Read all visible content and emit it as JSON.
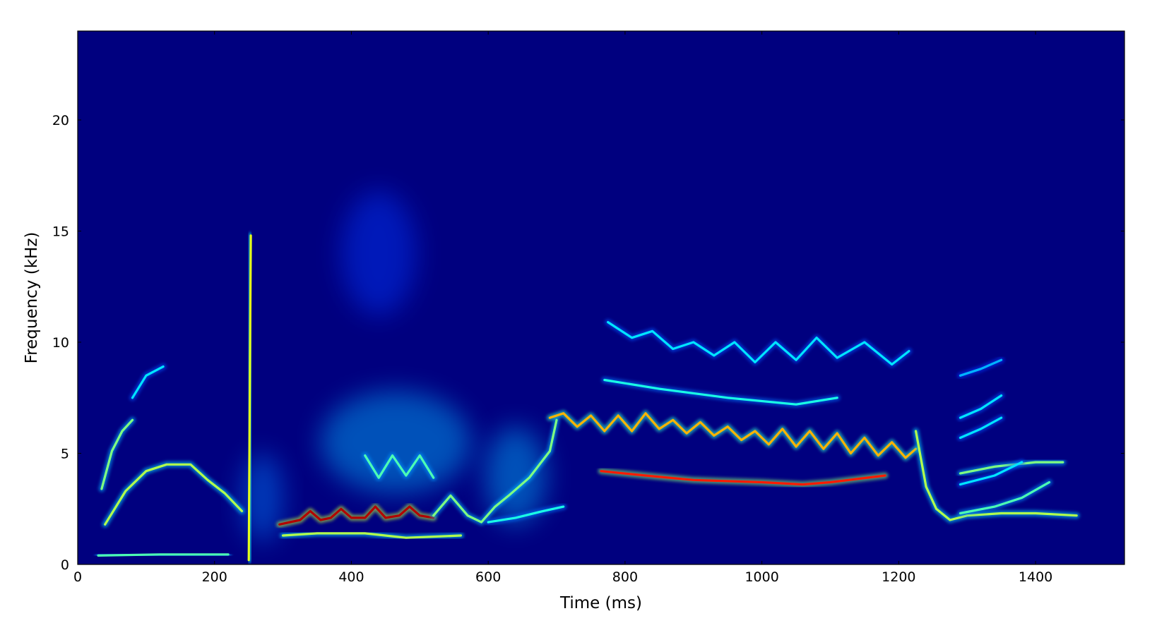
{
  "chart_data": {
    "type": "heatmap",
    "title": "",
    "xlabel": "Time (ms)",
    "ylabel": "Frequency (kHz)",
    "xlim": [
      0,
      1530
    ],
    "ylim": [
      0,
      24
    ],
    "x_ticks": [
      0,
      200,
      400,
      600,
      800,
      1000,
      1200,
      1400
    ],
    "y_ticks": [
      0,
      5,
      10,
      15,
      20
    ],
    "colormap": "jet",
    "grid": false,
    "background_color": "#00007f",
    "traces": [
      {
        "intensity": 0.45,
        "points": [
          [
            30,
            0.4
          ],
          [
            120,
            0.45
          ],
          [
            220,
            0.45
          ]
        ]
      },
      {
        "intensity": 0.55,
        "points": [
          [
            40,
            1.8
          ],
          [
            70,
            3.3
          ],
          [
            100,
            4.2
          ],
          [
            130,
            4.5
          ],
          [
            165,
            4.5
          ],
          [
            190,
            3.8
          ],
          [
            215,
            3.2
          ],
          [
            240,
            2.4
          ]
        ]
      },
      {
        "intensity": 0.5,
        "points": [
          [
            35,
            3.4
          ],
          [
            50,
            5.1
          ],
          [
            65,
            6.0
          ],
          [
            80,
            6.5
          ]
        ]
      },
      {
        "intensity": 0.35,
        "points": [
          [
            80,
            7.5
          ],
          [
            100,
            8.5
          ],
          [
            125,
            8.9
          ]
        ]
      },
      {
        "intensity": 0.6,
        "points": [
          [
            250,
            0.2
          ],
          [
            251,
            5.0
          ],
          [
            252,
            10.0
          ],
          [
            253,
            14.8
          ]
        ]
      },
      {
        "intensity": 0.95,
        "points": [
          [
            295,
            1.8
          ],
          [
            325,
            2.0
          ],
          [
            340,
            2.4
          ],
          [
            355,
            2.0
          ],
          [
            370,
            2.1
          ],
          [
            385,
            2.5
          ],
          [
            400,
            2.1
          ],
          [
            420,
            2.1
          ],
          [
            435,
            2.6
          ],
          [
            450,
            2.1
          ],
          [
            470,
            2.2
          ],
          [
            485,
            2.6
          ],
          [
            500,
            2.2
          ],
          [
            520,
            2.1
          ]
        ]
      },
      {
        "intensity": 0.55,
        "points": [
          [
            300,
            1.3
          ],
          [
            350,
            1.4
          ],
          [
            420,
            1.4
          ],
          [
            480,
            1.2
          ],
          [
            560,
            1.3
          ]
        ]
      },
      {
        "intensity": 0.5,
        "points": [
          [
            520,
            2.2
          ],
          [
            545,
            3.1
          ],
          [
            570,
            2.2
          ],
          [
            590,
            1.9
          ],
          [
            610,
            2.6
          ],
          [
            630,
            3.1
          ],
          [
            660,
            3.9
          ],
          [
            690,
            5.1
          ],
          [
            700,
            6.5
          ]
        ]
      },
      {
        "intensity": 0.45,
        "points": [
          [
            420,
            4.9
          ],
          [
            440,
            3.9
          ],
          [
            460,
            4.9
          ],
          [
            480,
            4.0
          ],
          [
            500,
            4.9
          ],
          [
            520,
            3.9
          ]
        ]
      },
      {
        "intensity": 0.4,
        "points": [
          [
            600,
            1.9
          ],
          [
            640,
            2.1
          ],
          [
            680,
            2.4
          ],
          [
            710,
            2.6
          ]
        ]
      },
      {
        "intensity": 0.7,
        "points": [
          [
            690,
            6.6
          ],
          [
            710,
            6.8
          ],
          [
            730,
            6.2
          ],
          [
            750,
            6.7
          ],
          [
            770,
            6.0
          ],
          [
            790,
            6.7
          ],
          [
            810,
            6.0
          ],
          [
            830,
            6.8
          ],
          [
            850,
            6.1
          ],
          [
            870,
            6.5
          ],
          [
            890,
            5.9
          ],
          [
            910,
            6.4
          ],
          [
            930,
            5.8
          ],
          [
            950,
            6.2
          ],
          [
            970,
            5.6
          ],
          [
            990,
            6.0
          ],
          [
            1010,
            5.4
          ],
          [
            1030,
            6.1
          ],
          [
            1050,
            5.3
          ],
          [
            1070,
            6.0
          ],
          [
            1090,
            5.2
          ],
          [
            1110,
            5.9
          ],
          [
            1130,
            5.0
          ],
          [
            1150,
            5.7
          ],
          [
            1170,
            4.9
          ],
          [
            1190,
            5.5
          ],
          [
            1210,
            4.8
          ],
          [
            1225,
            5.2
          ]
        ]
      },
      {
        "intensity": 0.85,
        "points": [
          [
            765,
            4.2
          ],
          [
            830,
            4.0
          ],
          [
            900,
            3.8
          ],
          [
            1000,
            3.7
          ],
          [
            1060,
            3.6
          ],
          [
            1100,
            3.7
          ],
          [
            1180,
            4.0
          ]
        ]
      },
      {
        "intensity": 0.4,
        "points": [
          [
            770,
            8.3
          ],
          [
            850,
            7.9
          ],
          [
            950,
            7.5
          ],
          [
            1050,
            7.2
          ],
          [
            1110,
            7.5
          ]
        ]
      },
      {
        "intensity": 0.35,
        "points": [
          [
            775,
            10.9
          ],
          [
            810,
            10.2
          ],
          [
            840,
            10.5
          ],
          [
            870,
            9.7
          ],
          [
            900,
            10.0
          ],
          [
            930,
            9.4
          ],
          [
            960,
            10.0
          ],
          [
            990,
            9.1
          ],
          [
            1020,
            10.0
          ],
          [
            1050,
            9.2
          ],
          [
            1080,
            10.2
          ],
          [
            1110,
            9.3
          ],
          [
            1150,
            10.0
          ],
          [
            1190,
            9.0
          ],
          [
            1215,
            9.6
          ]
        ]
      },
      {
        "intensity": 0.55,
        "points": [
          [
            1225,
            6.0
          ],
          [
            1240,
            3.5
          ],
          [
            1255,
            2.5
          ],
          [
            1275,
            2.0
          ],
          [
            1300,
            2.2
          ],
          [
            1350,
            2.3
          ],
          [
            1400,
            2.3
          ],
          [
            1460,
            2.2
          ]
        ]
      },
      {
        "intensity": 0.5,
        "points": [
          [
            1290,
            4.1
          ],
          [
            1340,
            4.4
          ],
          [
            1400,
            4.6
          ],
          [
            1440,
            4.6
          ]
        ]
      },
      {
        "intensity": 0.45,
        "points": [
          [
            1290,
            2.3
          ],
          [
            1340,
            2.6
          ],
          [
            1380,
            3.0
          ],
          [
            1420,
            3.7
          ]
        ]
      },
      {
        "intensity": 0.35,
        "points": [
          [
            1290,
            3.6
          ],
          [
            1340,
            4.0
          ],
          [
            1380,
            4.6
          ]
        ]
      },
      {
        "intensity": 0.35,
        "points": [
          [
            1290,
            5.7
          ],
          [
            1320,
            6.1
          ],
          [
            1350,
            6.6
          ]
        ]
      },
      {
        "intensity": 0.35,
        "points": [
          [
            1290,
            6.6
          ],
          [
            1320,
            7.0
          ],
          [
            1350,
            7.6
          ]
        ]
      },
      {
        "intensity": 0.3,
        "points": [
          [
            1290,
            8.5
          ],
          [
            1320,
            8.8
          ],
          [
            1350,
            9.2
          ]
        ]
      }
    ],
    "blobs": [
      {
        "x": 465,
        "y": 5.5,
        "rx": 110,
        "ry": 2.3,
        "intensity": 0.3
      },
      {
        "x": 440,
        "y": 14.0,
        "rx": 55,
        "ry": 2.8,
        "intensity": 0.18
      },
      {
        "x": 640,
        "y": 4.0,
        "rx": 45,
        "ry": 2.2,
        "intensity": 0.3
      },
      {
        "x": 270,
        "y": 3.0,
        "rx": 30,
        "ry": 2.0,
        "intensity": 0.25
      }
    ]
  }
}
